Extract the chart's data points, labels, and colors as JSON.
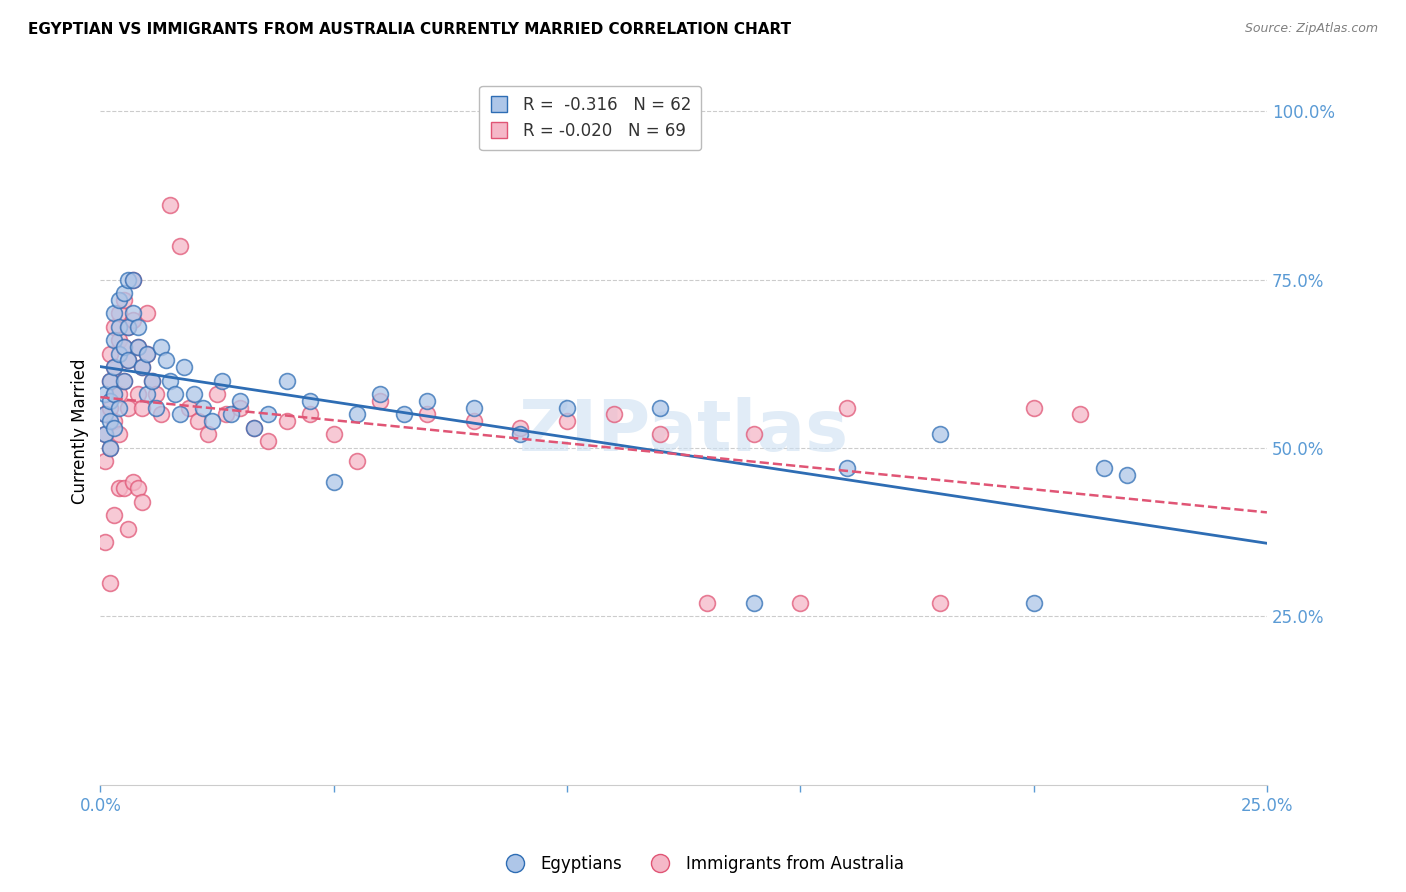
{
  "title": "EGYPTIAN VS IMMIGRANTS FROM AUSTRALIA CURRENTLY MARRIED CORRELATION CHART",
  "source": "Source: ZipAtlas.com",
  "ylabel": "Currently Married",
  "ylabel_right_ticks": [
    "100.0%",
    "75.0%",
    "50.0%",
    "25.0%"
  ],
  "ylabel_right_values": [
    1.0,
    0.75,
    0.5,
    0.25
  ],
  "legend_blue_r": "-0.316",
  "legend_blue_n": "62",
  "legend_pink_r": "-0.020",
  "legend_pink_n": "69",
  "legend_label_blue": "Egyptians",
  "legend_label_pink": "Immigrants from Australia",
  "blue_color": "#aec6e8",
  "pink_color": "#f5b8c8",
  "line_blue": "#2e6db4",
  "line_pink": "#e05575",
  "watermark": "ZIPatlas",
  "xlim": [
    0.0,
    0.25
  ],
  "ylim": [
    0.0,
    1.05
  ],
  "blue_scatter_x": [
    0.001,
    0.001,
    0.001,
    0.002,
    0.002,
    0.002,
    0.002,
    0.003,
    0.003,
    0.003,
    0.003,
    0.003,
    0.004,
    0.004,
    0.004,
    0.004,
    0.005,
    0.005,
    0.005,
    0.006,
    0.006,
    0.006,
    0.007,
    0.007,
    0.008,
    0.008,
    0.009,
    0.01,
    0.01,
    0.011,
    0.012,
    0.013,
    0.014,
    0.015,
    0.016,
    0.017,
    0.018,
    0.02,
    0.022,
    0.024,
    0.026,
    0.028,
    0.03,
    0.033,
    0.036,
    0.04,
    0.045,
    0.05,
    0.055,
    0.06,
    0.065,
    0.07,
    0.08,
    0.09,
    0.1,
    0.12,
    0.14,
    0.16,
    0.18,
    0.2,
    0.215,
    0.22
  ],
  "blue_scatter_y": [
    0.55,
    0.58,
    0.52,
    0.57,
    0.6,
    0.54,
    0.5,
    0.62,
    0.58,
    0.66,
    0.53,
    0.7,
    0.64,
    0.68,
    0.72,
    0.56,
    0.73,
    0.65,
    0.6,
    0.68,
    0.75,
    0.63,
    0.75,
    0.7,
    0.68,
    0.65,
    0.62,
    0.64,
    0.58,
    0.6,
    0.56,
    0.65,
    0.63,
    0.6,
    0.58,
    0.55,
    0.62,
    0.58,
    0.56,
    0.54,
    0.6,
    0.55,
    0.57,
    0.53,
    0.55,
    0.6,
    0.57,
    0.45,
    0.55,
    0.58,
    0.55,
    0.57,
    0.56,
    0.52,
    0.56,
    0.56,
    0.27,
    0.47,
    0.52,
    0.27,
    0.47,
    0.46
  ],
  "pink_scatter_x": [
    0.001,
    0.001,
    0.001,
    0.002,
    0.002,
    0.002,
    0.002,
    0.003,
    0.003,
    0.003,
    0.003,
    0.004,
    0.004,
    0.004,
    0.004,
    0.005,
    0.005,
    0.005,
    0.006,
    0.006,
    0.006,
    0.007,
    0.007,
    0.008,
    0.008,
    0.009,
    0.009,
    0.01,
    0.01,
    0.011,
    0.012,
    0.013,
    0.015,
    0.017,
    0.019,
    0.021,
    0.023,
    0.025,
    0.027,
    0.03,
    0.033,
    0.036,
    0.04,
    0.045,
    0.05,
    0.055,
    0.06,
    0.07,
    0.08,
    0.09,
    0.1,
    0.11,
    0.12,
    0.13,
    0.14,
    0.15,
    0.16,
    0.18,
    0.2,
    0.21,
    0.001,
    0.002,
    0.003,
    0.004,
    0.005,
    0.006,
    0.007,
    0.008,
    0.009
  ],
  "pink_scatter_y": [
    0.55,
    0.52,
    0.48,
    0.6,
    0.64,
    0.56,
    0.5,
    0.58,
    0.54,
    0.68,
    0.62,
    0.66,
    0.7,
    0.58,
    0.52,
    0.65,
    0.72,
    0.6,
    0.68,
    0.63,
    0.56,
    0.69,
    0.75,
    0.65,
    0.58,
    0.62,
    0.56,
    0.64,
    0.7,
    0.6,
    0.58,
    0.55,
    0.86,
    0.8,
    0.56,
    0.54,
    0.52,
    0.58,
    0.55,
    0.56,
    0.53,
    0.51,
    0.54,
    0.55,
    0.52,
    0.48,
    0.57,
    0.55,
    0.54,
    0.53,
    0.54,
    0.55,
    0.52,
    0.27,
    0.52,
    0.27,
    0.56,
    0.27,
    0.56,
    0.55,
    0.36,
    0.3,
    0.4,
    0.44,
    0.44,
    0.38,
    0.45,
    0.44,
    0.42
  ]
}
